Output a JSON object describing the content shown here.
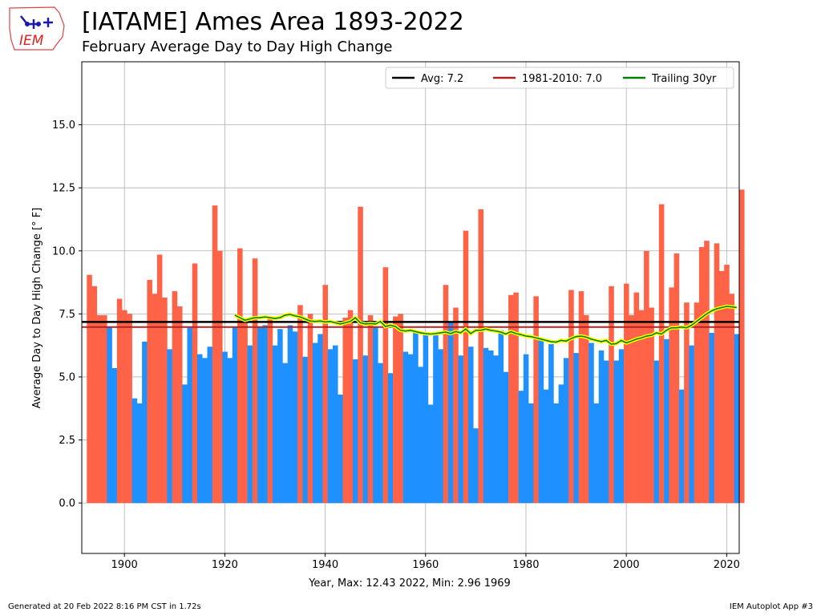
{
  "header": {
    "title": "[IATAME] Ames Area 1893-2022",
    "subtitle": "February Average Day to Day High Change",
    "logo_text": "IEM"
  },
  "footer": {
    "generated": "Generated at 20 Feb 2022 8:16 PM CST in 1.72s",
    "app": "IEM Autoplot App #3"
  },
  "colors": {
    "above": "#ff6347",
    "below": "#1e90ff",
    "avg_line": "#000000",
    "climo_line": "#b22222",
    "trailing_line": "#008000",
    "trailing_glow": "#ffff00"
  },
  "chart_data": {
    "type": "bar",
    "title": "[IATAME] Ames Area 1893-2022",
    "subtitle": "February Average Day to Day High Change",
    "xlabel": "Year, Max: 12.43 2022, Min: 2.96 1969",
    "ylabel": "Average Day to Day High Change [° F]",
    "xlim": [
      1891.5,
      2022.5
    ],
    "ylim": [
      -2.0,
      17.5
    ],
    "xticks": [
      1900,
      1920,
      1940,
      1960,
      1980,
      2000,
      2020
    ],
    "xtick_labels": [
      "1900",
      "1920",
      "1940",
      "1960",
      "1980",
      "2000",
      "2020"
    ],
    "yticks": [
      0.0,
      2.5,
      5.0,
      7.5,
      10.0,
      12.5,
      15.0
    ],
    "ytick_labels": [
      "0.0",
      "2.5",
      "5.0",
      "7.5",
      "10.0",
      "12.5",
      "15.0"
    ],
    "grid": true,
    "legend_position": "top-right",
    "legend": [
      {
        "label": "Avg: 7.2",
        "color": "#000000"
      },
      {
        "label": "1981-2010: 7.0",
        "color": "#b22222"
      },
      {
        "label": "Trailing 30yr",
        "color": "#008000"
      }
    ],
    "avg": 7.18,
    "climo_1981_2010": 6.98,
    "years_start": 1893,
    "values": [
      9.05,
      8.6,
      7.45,
      7.45,
      7.0,
      5.35,
      8.1,
      7.65,
      7.5,
      4.15,
      3.95,
      6.4,
      8.85,
      8.3,
      9.85,
      8.15,
      6.1,
      8.4,
      7.8,
      4.7,
      6.95,
      9.5,
      5.9,
      5.75,
      6.2,
      11.8,
      10.0,
      6.0,
      5.75,
      7.0,
      10.1,
      7.2,
      6.25,
      9.7,
      7.0,
      7.05,
      7.35,
      6.25,
      6.9,
      5.55,
      7.05,
      6.8,
      7.85,
      5.8,
      7.5,
      6.35,
      6.7,
      8.65,
      6.1,
      6.25,
      4.3,
      7.35,
      7.65,
      5.7,
      11.75,
      5.85,
      7.45,
      7.0,
      5.55,
      9.35,
      5.15,
      7.4,
      7.5,
      6.0,
      5.9,
      6.8,
      5.4,
      6.75,
      3.9,
      6.65,
      6.1,
      8.65,
      7.15,
      7.75,
      5.85,
      10.8,
      6.2,
      2.96,
      11.65,
      6.15,
      6.05,
      5.85,
      6.85,
      5.2,
      8.25,
      8.35,
      4.45,
      5.9,
      3.95,
      8.2,
      6.45,
      4.5,
      6.3,
      3.95,
      4.7,
      5.75,
      8.45,
      5.95,
      8.4,
      7.45,
      6.35,
      3.95,
      6.05,
      5.65,
      8.6,
      5.65,
      6.1,
      8.7,
      7.45,
      8.35,
      7.65,
      10.0,
      7.75,
      5.65,
      11.85,
      6.5,
      8.55,
      9.9,
      4.5,
      7.95,
      6.25,
      7.95,
      10.15,
      10.4,
      6.75,
      10.3,
      9.2,
      9.45,
      8.3,
      6.7,
      12.43
    ],
    "trailing_30yr": {
      "x": [
        1922,
        1923,
        1924,
        1925,
        1926,
        1927,
        1928,
        1929,
        1930,
        1931,
        1932,
        1933,
        1934,
        1935,
        1936,
        1937,
        1938,
        1939,
        1940,
        1941,
        1942,
        1943,
        1944,
        1945,
        1946,
        1947,
        1948,
        1949,
        1950,
        1951,
        1952,
        1953,
        1954,
        1955,
        1956,
        1957,
        1958,
        1959,
        1960,
        1961,
        1962,
        1963,
        1964,
        1965,
        1966,
        1967,
        1968,
        1969,
        1970,
        1971,
        1972,
        1973,
        1974,
        1975,
        1976,
        1977,
        1978,
        1979,
        1980,
        1981,
        1982,
        1983,
        1984,
        1985,
        1986,
        1987,
        1988,
        1989,
        1990,
        1991,
        1992,
        1993,
        1994,
        1995,
        1996,
        1997,
        1998,
        1999,
        2000,
        2001,
        2002,
        2003,
        2004,
        2005,
        2006,
        2007,
        2008,
        2009,
        2010,
        2011,
        2012,
        2013,
        2014,
        2015,
        2016,
        2017,
        2018,
        2019,
        2020,
        2021,
        2022
      ],
      "y": [
        7.45,
        7.35,
        7.25,
        7.3,
        7.35,
        7.35,
        7.38,
        7.35,
        7.32,
        7.35,
        7.45,
        7.48,
        7.42,
        7.38,
        7.3,
        7.22,
        7.2,
        7.22,
        7.18,
        7.2,
        7.15,
        7.1,
        7.15,
        7.2,
        7.35,
        7.15,
        7.1,
        7.12,
        7.1,
        7.2,
        7.0,
        7.05,
        7.0,
        6.85,
        6.82,
        6.85,
        6.8,
        6.75,
        6.72,
        6.7,
        6.72,
        6.75,
        6.78,
        6.72,
        6.8,
        6.75,
        6.9,
        6.72,
        6.85,
        6.85,
        6.9,
        6.85,
        6.82,
        6.78,
        6.7,
        6.8,
        6.72,
        6.68,
        6.62,
        6.6,
        6.55,
        6.5,
        6.45,
        6.4,
        6.38,
        6.45,
        6.42,
        6.52,
        6.6,
        6.62,
        6.58,
        6.5,
        6.45,
        6.4,
        6.45,
        6.3,
        6.32,
        6.45,
        6.35,
        6.42,
        6.5,
        6.55,
        6.62,
        6.65,
        6.75,
        6.7,
        6.85,
        6.95,
        6.95,
        6.98,
        6.95,
        7.05,
        7.2,
        7.35,
        7.5,
        7.62,
        7.7,
        7.75,
        7.8,
        7.78,
        7.75
      ]
    }
  }
}
